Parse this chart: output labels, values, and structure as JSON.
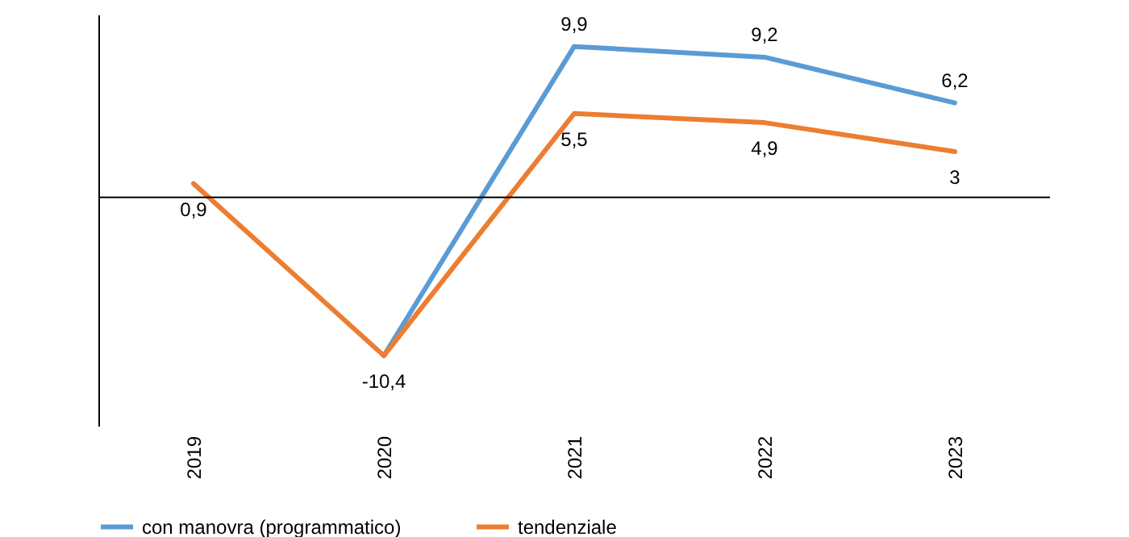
{
  "chart_data": {
    "type": "line",
    "categories": [
      "2019",
      "2020",
      "2021",
      "2022",
      "2023"
    ],
    "series": [
      {
        "name": "con manovra (programmatico)",
        "color": "#5b9bd5",
        "values": [
          null,
          -10.4,
          9.9,
          9.2,
          6.2
        ],
        "value_labels": [
          null,
          null,
          "9,9",
          "9,2",
          "6,2"
        ]
      },
      {
        "name": "tendenziale",
        "color": "#ed7d31",
        "values": [
          0.9,
          -10.4,
          5.5,
          4.9,
          3
        ],
        "value_labels": [
          "0,9",
          "-10,4",
          "5,5",
          "4,9",
          "3"
        ]
      }
    ],
    "ylim": [
      -15,
      12
    ],
    "tick_labels": "x",
    "grid": false,
    "legend": "bottom",
    "marker": "none",
    "line_style": "solid"
  }
}
